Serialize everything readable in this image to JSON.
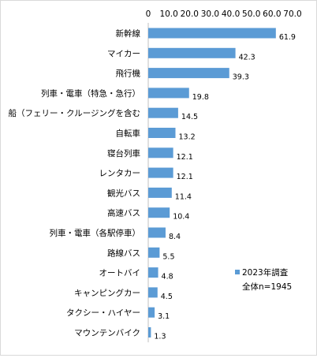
{
  "chart_data": {
    "type": "bar",
    "orientation": "horizontal",
    "categories": [
      "新幹線",
      "マイカー",
      "飛行機",
      "列車・電車（特急・急行）",
      "船（フェリー・クルージングを含む",
      "自転車",
      "寝台列車",
      "レンタカー",
      "観光バス",
      "高速バス",
      "列車・電車（各駅停車）",
      "路線バス",
      "オートバイ",
      "キャンピングカー",
      "タクシー・ハイヤー",
      "マウンテンバイク"
    ],
    "values": [
      61.9,
      42.3,
      39.3,
      19.8,
      14.5,
      13.2,
      12.1,
      12.1,
      11.4,
      10.4,
      8.4,
      5.5,
      4.8,
      4.5,
      3.1,
      1.3
    ],
    "value_labels": [
      "61.9",
      "42.3",
      "39.3",
      "19.8",
      "14.5",
      "13.2",
      "12.1",
      "12.1",
      "11.4",
      "10.4",
      "8.4",
      "5.5",
      "4.8",
      "4.5",
      "3.1",
      "1.3"
    ],
    "xlim": [
      0,
      70
    ],
    "x_ticks": [
      0,
      10,
      20,
      30,
      40,
      50,
      60,
      70
    ],
    "x_tick_labels": [
      "0",
      "10.0",
      "20.0",
      "30.0",
      "40.0",
      "50.0",
      "60.0",
      "70.0"
    ],
    "x_axis_position": "top",
    "grid": false,
    "legend": {
      "position": "lower-right",
      "entries": [
        "2023年調査"
      ],
      "note": "全体n=1945"
    },
    "colors": {
      "bar": "#5b9bd5",
      "axis": "#bfbfbf"
    }
  }
}
